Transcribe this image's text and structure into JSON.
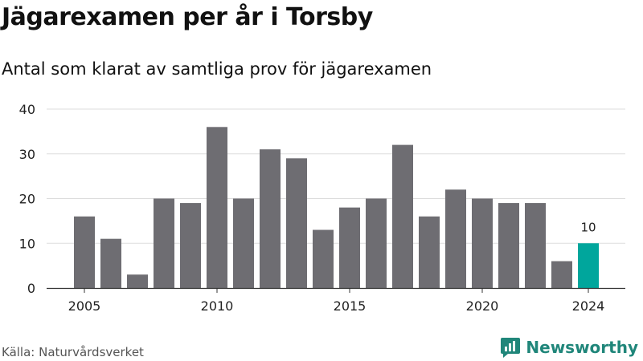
{
  "header": {
    "title": "Jägarexamen per år i Torsby",
    "subtitle": "Antal som klarat av samtliga prov för jägarexamen"
  },
  "footer": {
    "source": "Källa: Naturvårdsverket",
    "brand": "Newsworthy"
  },
  "colors": {
    "bar": "#6e6d72",
    "highlight": "#00a69c",
    "grid": "#dddddd",
    "axis": "#333333",
    "brand": "#20867a"
  },
  "chart_data": {
    "type": "bar",
    "title": "Jägarexamen per år i Torsby",
    "subtitle": "Antal som klarat av samtliga prov för jägarexamen",
    "x": [
      2005,
      2006,
      2007,
      2008,
      2009,
      2010,
      2011,
      2012,
      2013,
      2014,
      2015,
      2016,
      2017,
      2018,
      2019,
      2020,
      2021,
      2022,
      2023,
      2024
    ],
    "values": [
      16,
      11,
      3,
      20,
      19,
      36,
      20,
      31,
      29,
      13,
      18,
      20,
      32,
      16,
      22,
      20,
      19,
      19,
      6,
      10
    ],
    "x_ticks": [
      2005,
      2010,
      2015,
      2020,
      2024
    ],
    "y_ticks": [
      0,
      10,
      20,
      30,
      40
    ],
    "ylim": [
      0,
      40
    ],
    "highlight": {
      "x": 2024,
      "label": "10"
    },
    "grid": "horizontal",
    "legend": "none"
  }
}
